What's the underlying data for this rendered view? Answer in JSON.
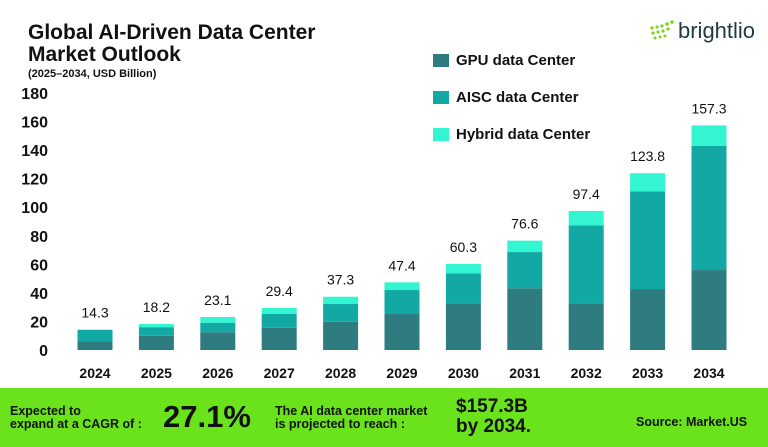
{
  "header": {
    "title": "Global AI-Driven Data Center Market Outlook",
    "subtitle": "(2025–2034, USD Billion)",
    "logo_text": "brightlio"
  },
  "colors": {
    "gpu": "#2e7b80",
    "aisc": "#12a9a5",
    "hybrid": "#33f5d2",
    "band": "#6be31c"
  },
  "chart_data": {
    "type": "bar",
    "stacked": true,
    "title": "Global AI-Driven Data Center Market Outlook",
    "subtitle": "(2025–2034, USD Billion)",
    "categories": [
      "2024",
      "2025",
      "2026",
      "2027",
      "2028",
      "2029",
      "2030",
      "2031",
      "2032",
      "2033",
      "2034"
    ],
    "totals": [
      "14.3",
      "18.2",
      "23.1",
      "29.4",
      "37.3",
      "47.4",
      "60.3",
      "76.6",
      "97.4",
      "123.8",
      "157.3"
    ],
    "series": [
      {
        "name": "GPU data Center",
        "values": [
          6.0,
          10.0,
          12.4,
          15.6,
          19.8,
          25.2,
          32.7,
          43.2,
          32.7,
          42.7,
          56.0
        ]
      },
      {
        "name": "AISC data Center",
        "values": [
          8.0,
          6.0,
          6.7,
          9.8,
          12.4,
          16.8,
          21.0,
          25.4,
          54.6,
          68.4,
          87.0
        ]
      },
      {
        "name": "Hybrid data Center",
        "values": [
          0.3,
          2.2,
          4.0,
          4.0,
          5.1,
          5.4,
          6.6,
          8.0,
          10.1,
          12.7,
          14.3
        ]
      }
    ],
    "yticks": [
      "0",
      "20",
      "40",
      "60",
      "80",
      "100",
      "120",
      "140",
      "160",
      "180"
    ],
    "ylim": [
      0,
      180
    ],
    "grid": false,
    "legend": "top-right"
  },
  "footer": {
    "cagr_label": [
      "Expected to",
      "expand at a CAGR of :"
    ],
    "cagr_value": "27.1%",
    "reach_label": [
      "The AI data center market",
      "is projected to reach :"
    ],
    "reach_value": [
      "$157.3B",
      "by 2034."
    ],
    "source": "Source: Market.US"
  }
}
